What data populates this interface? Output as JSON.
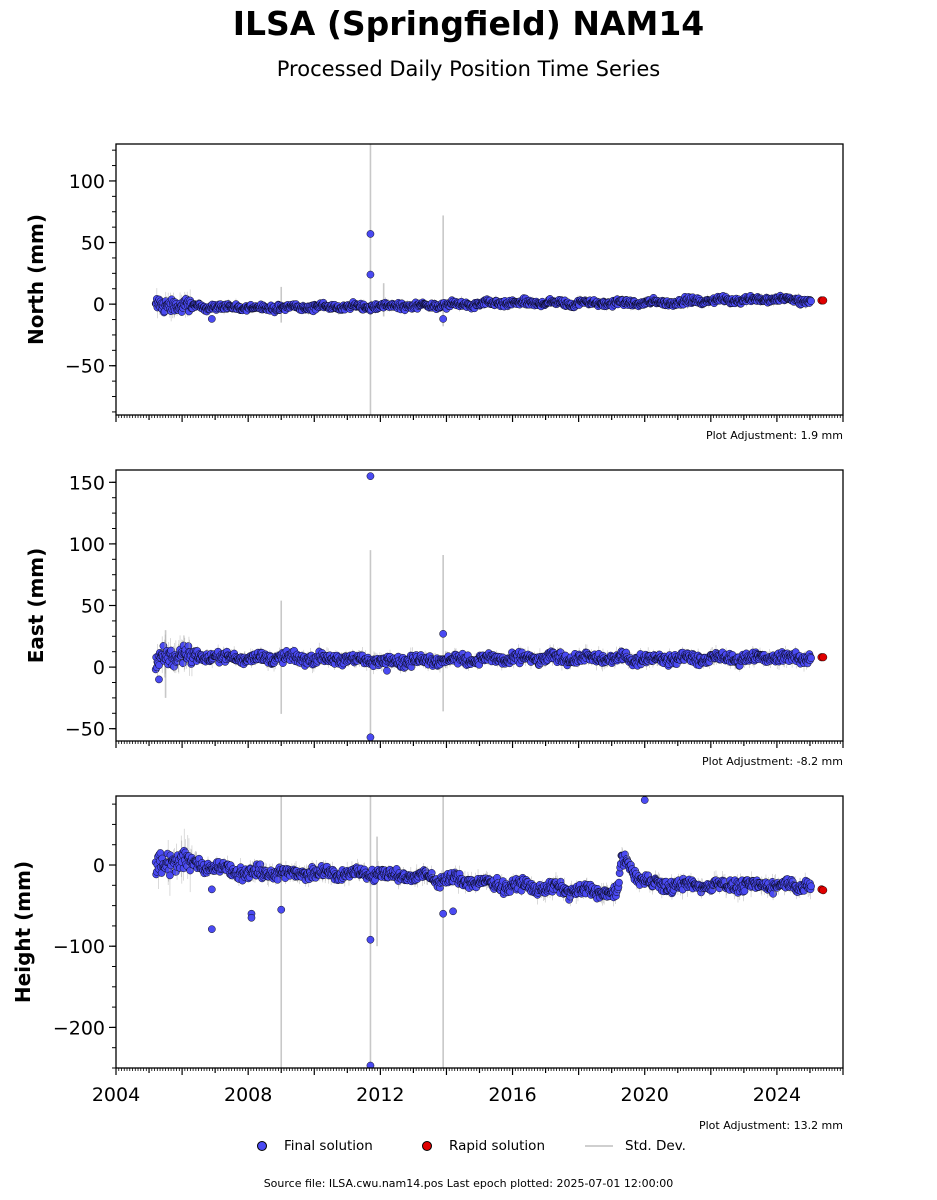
{
  "title": "ILSA (Springfield) NAM14",
  "subtitle": "Processed Daily Position Time Series",
  "legend": {
    "final": "Final solution",
    "rapid": "Rapid solution",
    "std": "Std. Dev."
  },
  "footer": "Source file: ILSA.cwu.nam14.pos  Last epoch plotted: 2025-07-01 12:00:00",
  "colors": {
    "final": "#4a4af2",
    "rapid": "#e00000",
    "std": "#c8c8c8",
    "dot_edge": "#000000"
  },
  "chart_data": [
    {
      "type": "scatter",
      "ylabel": "North (mm)",
      "plot_adjustment": "Plot Adjustment: 1.9 mm",
      "xlim": [
        2004.0,
        2026.0
      ],
      "ylim": [
        -90,
        130
      ],
      "yticks": [
        100,
        50,
        0,
        -50
      ],
      "ytick_labels": [
        "100",
        "50",
        "0",
        "−50"
      ],
      "baseline": [
        [
          2005.2,
          -1
        ],
        [
          2008.0,
          -3
        ],
        [
          2011.7,
          -2
        ],
        [
          2014.0,
          -1
        ],
        [
          2016.0,
          1
        ],
        [
          2019.0,
          1
        ],
        [
          2020.5,
          1
        ],
        [
          2022.0,
          3
        ],
        [
          2024.0,
          4
        ],
        [
          2025.0,
          3
        ]
      ],
      "noise": 2.5,
      "outliers": [
        [
          2011.7,
          57
        ],
        [
          2011.7,
          24
        ],
        [
          2013.9,
          -12
        ],
        [
          2006.9,
          -12
        ]
      ],
      "std_spikes": [
        [
          2011.7,
          -90,
          130
        ],
        [
          2013.9,
          -18,
          72
        ],
        [
          2009.0,
          -15,
          14
        ],
        [
          2012.1,
          -10,
          17
        ]
      ],
      "rapid": [
        [
          2025.35,
          3
        ],
        [
          2025.4,
          3
        ]
      ]
    },
    {
      "type": "scatter",
      "ylabel": "East (mm)",
      "plot_adjustment": "Plot Adjustment: -8.2 mm",
      "xlim": [
        2004.0,
        2026.0
      ],
      "ylim": [
        -60,
        160
      ],
      "yticks": [
        150,
        100,
        50,
        0,
        -50
      ],
      "ytick_labels": [
        "150",
        "100",
        "50",
        "0",
        "−50"
      ],
      "baseline": [
        [
          2005.2,
          3
        ],
        [
          2005.6,
          10
        ],
        [
          2007.0,
          8
        ],
        [
          2010.0,
          7
        ],
        [
          2012.5,
          5
        ],
        [
          2016.0,
          7
        ],
        [
          2019.0,
          7
        ],
        [
          2022.0,
          7
        ],
        [
          2025.0,
          8
        ]
      ],
      "noise": 4.0,
      "outliers": [
        [
          2011.7,
          155
        ],
        [
          2011.7,
          -57
        ],
        [
          2013.9,
          27
        ],
        [
          2005.3,
          -10
        ],
        [
          2012.2,
          -3
        ]
      ],
      "std_spikes": [
        [
          2011.7,
          -60,
          95
        ],
        [
          2013.9,
          -36,
          91
        ],
        [
          2009.0,
          -38,
          54
        ],
        [
          2005.5,
          -25,
          30
        ]
      ],
      "rapid": [
        [
          2025.35,
          8
        ],
        [
          2025.4,
          8
        ]
      ]
    },
    {
      "type": "scatter",
      "ylabel": "Height (mm)",
      "plot_adjustment": "Plot Adjustment: 13.2 mm",
      "xlim": [
        2004.0,
        2026.0
      ],
      "ylim": [
        -250,
        85
      ],
      "yticks": [
        0,
        -100,
        -200
      ],
      "ytick_labels": [
        "0",
        "−100",
        "−200"
      ],
      "xticks": [
        2004,
        2008,
        2012,
        2016,
        2020,
        2024
      ],
      "xtick_labels": [
        "2004",
        "2008",
        "2012",
        "2016",
        "2020",
        "2024"
      ],
      "baseline": [
        [
          2005.2,
          0
        ],
        [
          2006.0,
          5
        ],
        [
          2008.0,
          -10
        ],
        [
          2012.0,
          -10
        ],
        [
          2016.0,
          -25
        ],
        [
          2019.2,
          -35
        ],
        [
          2019.3,
          10
        ],
        [
          2019.8,
          -15
        ],
        [
          2020.5,
          -25
        ],
        [
          2025.0,
          -25
        ]
      ],
      "noise": 7.0,
      "outliers": [
        [
          2020.0,
          80
        ],
        [
          2011.7,
          -92
        ],
        [
          2011.7,
          -247
        ],
        [
          2006.9,
          -79
        ],
        [
          2008.1,
          -60
        ],
        [
          2008.1,
          -65
        ],
        [
          2009.0,
          -55
        ],
        [
          2013.9,
          -60
        ],
        [
          2014.2,
          -57
        ],
        [
          2006.9,
          -30
        ]
      ],
      "std_spikes": [
        [
          2011.7,
          -250,
          85
        ],
        [
          2013.9,
          -250,
          85
        ],
        [
          2009.0,
          -250,
          85
        ],
        [
          2011.9,
          -100,
          35
        ]
      ],
      "rapid": [
        [
          2025.35,
          -30
        ],
        [
          2025.4,
          -31
        ]
      ]
    }
  ]
}
